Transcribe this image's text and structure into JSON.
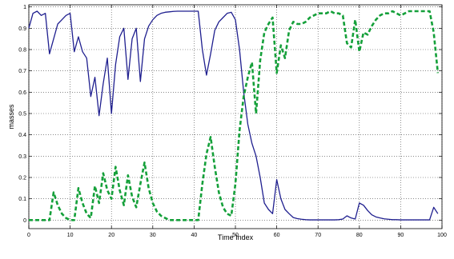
{
  "chart_data": {
    "type": "line",
    "title": "",
    "xlabel": "Time Index",
    "ylabel": "masses",
    "xlim": [
      0,
      100
    ],
    "ylim": [
      -0.04,
      1.01
    ],
    "x_ticks": [
      0,
      10,
      20,
      30,
      40,
      50,
      60,
      70,
      80,
      90,
      100
    ],
    "y_ticks": [
      0,
      0.1,
      0.2,
      0.3,
      0.4,
      0.5,
      0.6,
      0.7,
      0.8,
      0.9,
      1
    ],
    "x_tick_labels": [
      "0",
      "10",
      "20",
      "30",
      "40",
      "50",
      "60",
      "70",
      "80",
      "90",
      "100"
    ],
    "y_tick_labels": [
      "0",
      "0.1",
      "0.2",
      "0.3",
      "0.4",
      "0.5",
      "0.6",
      "0.7",
      "0.8",
      "0.9",
      "1"
    ],
    "grid": true,
    "legend": "none",
    "series": [
      {
        "color": "#1f1f8f",
        "line_style": "solid",
        "x": [
          0,
          1,
          2,
          3,
          4,
          5,
          6,
          7,
          8,
          9,
          10,
          11,
          12,
          13,
          14,
          15,
          16,
          17,
          18,
          19,
          20,
          21,
          22,
          23,
          24,
          25,
          26,
          27,
          28,
          29,
          30,
          31,
          32,
          33,
          34,
          35,
          36,
          37,
          38,
          39,
          40,
          41,
          42,
          43,
          44,
          45,
          46,
          47,
          48,
          49,
          50,
          51,
          52,
          53,
          54,
          55,
          56,
          57,
          58,
          59,
          60,
          61,
          62,
          63,
          64,
          65,
          66,
          67,
          68,
          69,
          70,
          71,
          72,
          73,
          74,
          75,
          76,
          77,
          78,
          79,
          80,
          81,
          82,
          83,
          84,
          85,
          86,
          87,
          88,
          89,
          90,
          91,
          92,
          93,
          94,
          95,
          96,
          97,
          98,
          99
        ],
        "values": [
          0.9,
          0.97,
          0.98,
          0.96,
          0.97,
          0.78,
          0.85,
          0.92,
          0.94,
          0.96,
          0.97,
          0.79,
          0.86,
          0.79,
          0.76,
          0.58,
          0.67,
          0.49,
          0.64,
          0.76,
          0.5,
          0.73,
          0.86,
          0.9,
          0.66,
          0.85,
          0.9,
          0.65,
          0.85,
          0.91,
          0.94,
          0.96,
          0.97,
          0.975,
          0.977,
          0.979,
          0.98,
          0.98,
          0.98,
          0.98,
          0.98,
          0.98,
          0.8,
          0.68,
          0.78,
          0.89,
          0.93,
          0.95,
          0.97,
          0.975,
          0.94,
          0.8,
          0.6,
          0.45,
          0.36,
          0.3,
          0.2,
          0.08,
          0.05,
          0.03,
          0.19,
          0.1,
          0.05,
          0.03,
          0.012,
          0.007,
          0.004,
          0.002,
          0.001,
          0.001,
          0.001,
          0.001,
          0.001,
          0.001,
          0.001,
          0.002,
          0.005,
          0.02,
          0.01,
          0.005,
          0.08,
          0.07,
          0.045,
          0.025,
          0.015,
          0.01,
          0.006,
          0.004,
          0.002,
          0.002,
          0.001,
          0.001,
          0.001,
          0.001,
          0.001,
          0.001,
          0.001,
          0.001,
          0.06,
          0.03
        ]
      },
      {
        "color": "#15a03a",
        "line_style": "dashed",
        "x": [
          0,
          1,
          2,
          3,
          4,
          5,
          6,
          7,
          8,
          9,
          10,
          11,
          12,
          13,
          14,
          15,
          16,
          17,
          18,
          19,
          20,
          21,
          22,
          23,
          24,
          25,
          26,
          27,
          28,
          29,
          30,
          31,
          32,
          33,
          34,
          35,
          36,
          37,
          38,
          39,
          40,
          41,
          42,
          43,
          44,
          45,
          46,
          47,
          48,
          49,
          50,
          51,
          52,
          53,
          54,
          55,
          56,
          57,
          58,
          59,
          60,
          61,
          62,
          63,
          64,
          65,
          66,
          67,
          68,
          69,
          70,
          71,
          72,
          73,
          74,
          75,
          76,
          77,
          78,
          79,
          80,
          81,
          82,
          83,
          84,
          85,
          86,
          87,
          88,
          89,
          90,
          91,
          92,
          93,
          94,
          95,
          96,
          97,
          98,
          99
        ],
        "values": [
          0.0,
          0.0,
          0.0,
          0.0,
          0.0,
          0.0,
          0.13,
          0.07,
          0.03,
          0.01,
          0.0,
          0.0,
          0.15,
          0.08,
          0.03,
          0.01,
          0.16,
          0.08,
          0.22,
          0.14,
          0.1,
          0.25,
          0.14,
          0.07,
          0.21,
          0.11,
          0.06,
          0.17,
          0.27,
          0.15,
          0.08,
          0.04,
          0.02,
          0.01,
          0.0,
          0.0,
          0.0,
          0.0,
          0.0,
          0.0,
          0.0,
          0.0,
          0.17,
          0.31,
          0.39,
          0.25,
          0.13,
          0.06,
          0.03,
          0.02,
          0.17,
          0.42,
          0.58,
          0.67,
          0.74,
          0.5,
          0.75,
          0.88,
          0.92,
          0.95,
          0.69,
          0.82,
          0.76,
          0.89,
          0.93,
          0.92,
          0.92,
          0.93,
          0.95,
          0.96,
          0.97,
          0.97,
          0.97,
          0.98,
          0.97,
          0.97,
          0.96,
          0.83,
          0.81,
          0.94,
          0.79,
          0.88,
          0.87,
          0.91,
          0.94,
          0.96,
          0.97,
          0.97,
          0.98,
          0.97,
          0.96,
          0.97,
          0.98,
          0.98,
          0.98,
          0.98,
          0.98,
          0.98,
          0.88,
          0.69
        ]
      }
    ]
  }
}
